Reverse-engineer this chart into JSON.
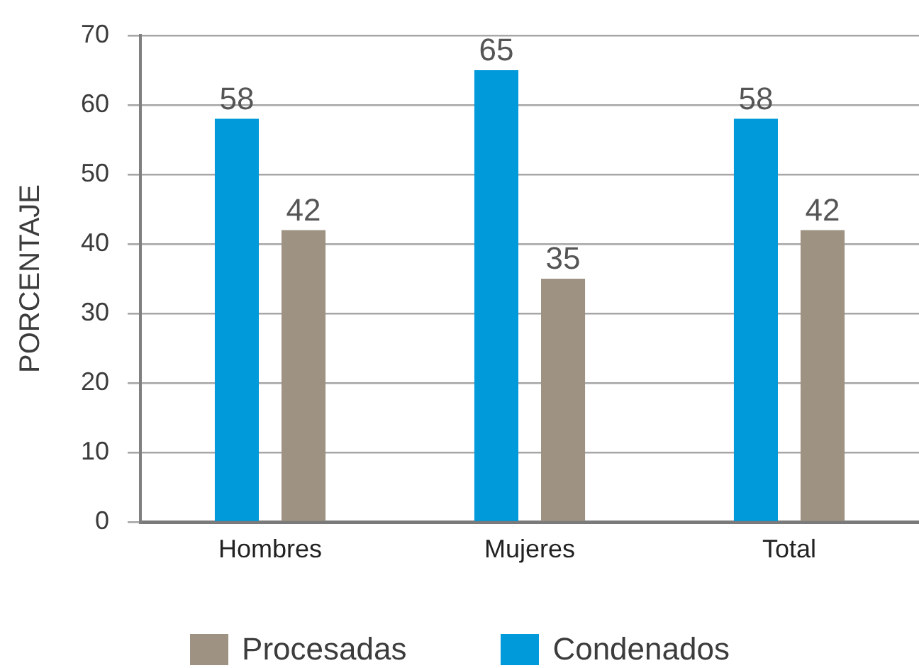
{
  "chart_data": {
    "type": "bar",
    "ylabel": "PORCENTAJE",
    "categories": [
      "Hombres",
      "Mujeres",
      "Total"
    ],
    "series": [
      {
        "name": "Condenados",
        "color": "#0099da",
        "values": [
          58,
          65,
          58
        ]
      },
      {
        "name": "Procesadas",
        "color": "#9e9282",
        "values": [
          42,
          35,
          42
        ]
      }
    ],
    "ylim": [
      0,
      70
    ],
    "yticks": [
      0,
      10,
      20,
      30,
      40,
      50,
      60,
      70
    ],
    "grid": "y",
    "legend": "bottom",
    "data_labels": true
  }
}
